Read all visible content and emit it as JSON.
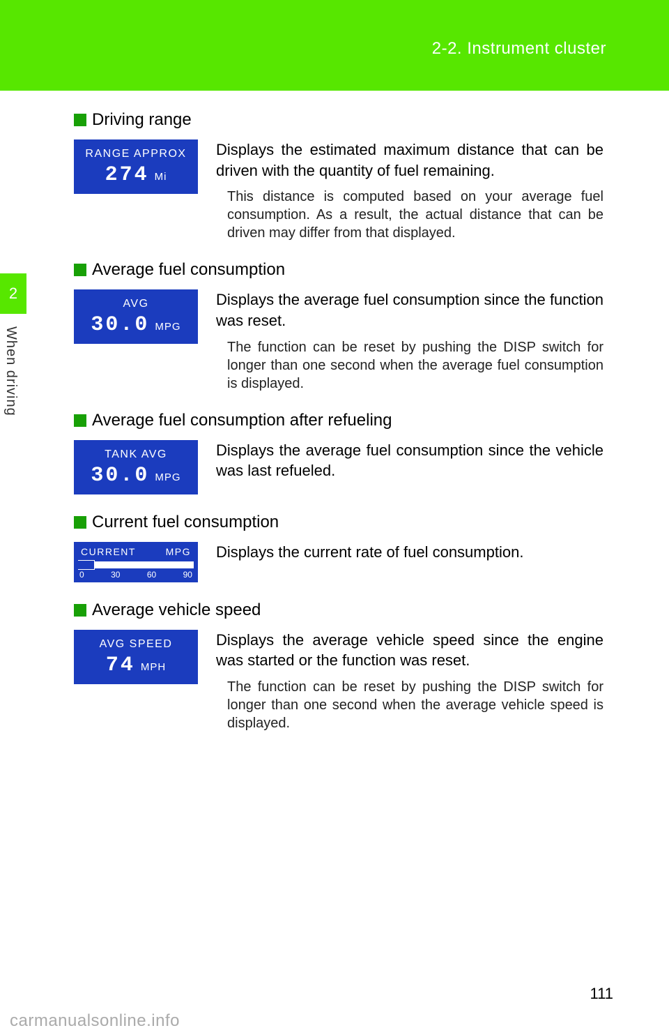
{
  "header": {
    "section": "2-2. Instrument cluster"
  },
  "tab": {
    "number": "2",
    "side_label": "When driving"
  },
  "sections": {
    "range": {
      "heading": "Driving range",
      "display": {
        "label": "RANGE APPROX",
        "value": "274",
        "unit": "Mi"
      },
      "main": "Displays the estimated maximum distance that can be driven with the quantity of fuel remaining.",
      "sub": "This distance is computed based on your average fuel consumption. As a result, the actual distance that can be driven may differ from that displayed."
    },
    "avg": {
      "heading": "Average fuel consumption",
      "display": {
        "label": "AVG",
        "value": "30.0",
        "unit": "MPG"
      },
      "main": "Displays the average fuel consumption since the function was reset.",
      "sub": "The function can be reset by pushing the DISP switch for longer than one second when the average fuel consumption is displayed."
    },
    "tank": {
      "heading": "Average fuel consumption after refueling",
      "display": {
        "label": "TANK AVG",
        "value": "30.0",
        "unit": "MPG"
      },
      "main": "Displays the average fuel consumption since the vehicle was last refueled."
    },
    "current": {
      "heading": "Current fuel consumption",
      "gauge": {
        "label_left": "CURRENT",
        "label_right": "MPG",
        "ticks": [
          "0",
          "30",
          "60",
          "90"
        ]
      },
      "main": "Displays the current rate of fuel consumption."
    },
    "speed": {
      "heading": "Average vehicle speed",
      "display": {
        "label": "AVG SPEED",
        "value": "74",
        "unit": "MPH"
      },
      "main": "Displays the average vehicle speed since the engine was started or the function was reset.",
      "sub": "The function can be reset by pushing the DISP switch for longer than one second when the average vehicle speed is displayed."
    }
  },
  "page_number": "111",
  "watermark": "carmanualsonline.info",
  "colors": {
    "green_band": "#57e700",
    "green_square": "#18a006",
    "display_bg": "#1b3cbe"
  }
}
